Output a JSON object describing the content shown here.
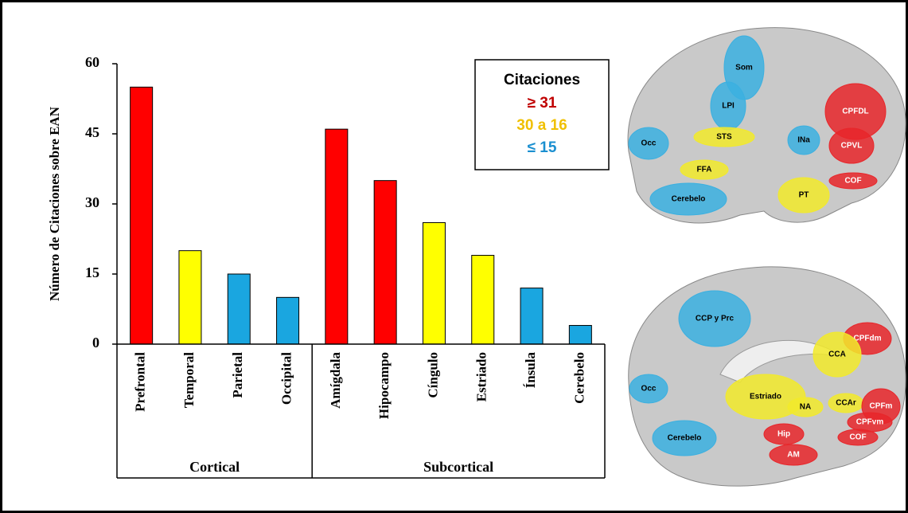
{
  "chart_data": {
    "type": "bar",
    "y_label": "Número de Citaciones sobre EAN",
    "categories": [
      "Prefrontal",
      "Temporal",
      "Parietal",
      "Occipital",
      "Amígdala",
      "Hipocampo",
      "Cíngulo",
      "Estriado",
      "Ínsula",
      "Cerebelo"
    ],
    "values": [
      55,
      20,
      15,
      10,
      46,
      35,
      26,
      19,
      12,
      4
    ],
    "colors": [
      "#ff0000",
      "#ffff00",
      "#1aa6e0",
      "#1aa6e0",
      "#ff0000",
      "#ff0000",
      "#ffff00",
      "#ffff00",
      "#1aa6e0",
      "#1aa6e0"
    ],
    "groups": [
      "Cortical",
      "Subcortical"
    ],
    "ylim": [
      0,
      60
    ],
    "yticks": [
      0,
      15,
      30,
      45,
      60
    ],
    "legend": {
      "title": "Citaciones",
      "items": [
        {
          "label": "≥ 31",
          "color": "#c00000"
        },
        {
          "label": "30 a 16",
          "color": "#f0c000"
        },
        {
          "label": "≤ 15",
          "color": "#1a8fd0"
        }
      ]
    }
  },
  "brains": {
    "lateral": [
      "Som",
      "LPI",
      "CPFDL",
      "STS",
      "INa",
      "Occ",
      "CPVL",
      "FFA",
      "COF",
      "Cerebelo",
      "PT"
    ],
    "medial": [
      "CCP y Prc",
      "CPFdm",
      "CCA",
      "Occ",
      "Estriado",
      "CCAr",
      "NA",
      "CPFm",
      "CPFvm",
      "Cerebelo",
      "Hip",
      "COF",
      "AM"
    ]
  }
}
